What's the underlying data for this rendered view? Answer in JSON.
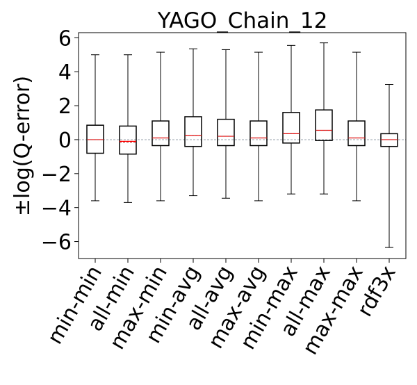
{
  "chart_data": {
    "type": "box",
    "title": "YAGO_Chain_12",
    "xlabel": "",
    "ylabel": "±log(Q-error)",
    "ylim": [
      -7,
      6.3
    ],
    "yticks": [
      -6,
      -4,
      -2,
      0,
      2,
      4,
      6
    ],
    "ytick_labels": [
      "−6",
      "−4",
      "−2",
      "0",
      "2",
      "4",
      "6"
    ],
    "grid": false,
    "zero_reference_line": true,
    "colors": {
      "box": "#000000",
      "median": "#ff0000",
      "mean": "#b22222",
      "zero_line": "#9aa3ad"
    },
    "categories": [
      "min-min",
      "all-min",
      "max-min",
      "min-avg",
      "all-avg",
      "max-avg",
      "min-max",
      "all-max",
      "max-max",
      "rdf3x"
    ],
    "boxes": [
      {
        "category": "min-min",
        "whisker_low": -3.6,
        "q1": -0.8,
        "median": 0.0,
        "mean": 0.0,
        "q3": 0.85,
        "whisker_high": 5.0
      },
      {
        "category": "all-min",
        "whisker_low": -3.7,
        "q1": -0.85,
        "median": -0.1,
        "mean": -0.15,
        "q3": 0.8,
        "whisker_high": 5.0
      },
      {
        "category": "max-min",
        "whisker_low": -3.6,
        "q1": -0.35,
        "median": 0.1,
        "mean": 0.1,
        "q3": 1.1,
        "whisker_high": 5.15
      },
      {
        "category": "min-avg",
        "whisker_low": -3.3,
        "q1": -0.4,
        "median": 0.25,
        "mean": 0.25,
        "q3": 1.35,
        "whisker_high": 5.35
      },
      {
        "category": "all-avg",
        "whisker_low": -3.45,
        "q1": -0.35,
        "median": 0.2,
        "mean": 0.2,
        "q3": 1.2,
        "whisker_high": 5.3
      },
      {
        "category": "max-avg",
        "whisker_low": -3.6,
        "q1": -0.35,
        "median": 0.1,
        "mean": 0.1,
        "q3": 1.1,
        "whisker_high": 5.15
      },
      {
        "category": "min-max",
        "whisker_low": -3.2,
        "q1": -0.2,
        "median": 0.35,
        "mean": 0.35,
        "q3": 1.6,
        "whisker_high": 5.55
      },
      {
        "category": "all-max",
        "whisker_low": -3.2,
        "q1": -0.05,
        "median": 0.55,
        "mean": 0.55,
        "q3": 1.75,
        "whisker_high": 5.7
      },
      {
        "category": "max-max",
        "whisker_low": -3.6,
        "q1": -0.35,
        "median": 0.1,
        "mean": 0.1,
        "q3": 1.1,
        "whisker_high": 5.15
      },
      {
        "category": "rdf3x",
        "whisker_low": -6.35,
        "q1": -0.4,
        "median": 0.0,
        "mean": 0.0,
        "q3": 0.35,
        "whisker_high": 3.25
      }
    ]
  }
}
